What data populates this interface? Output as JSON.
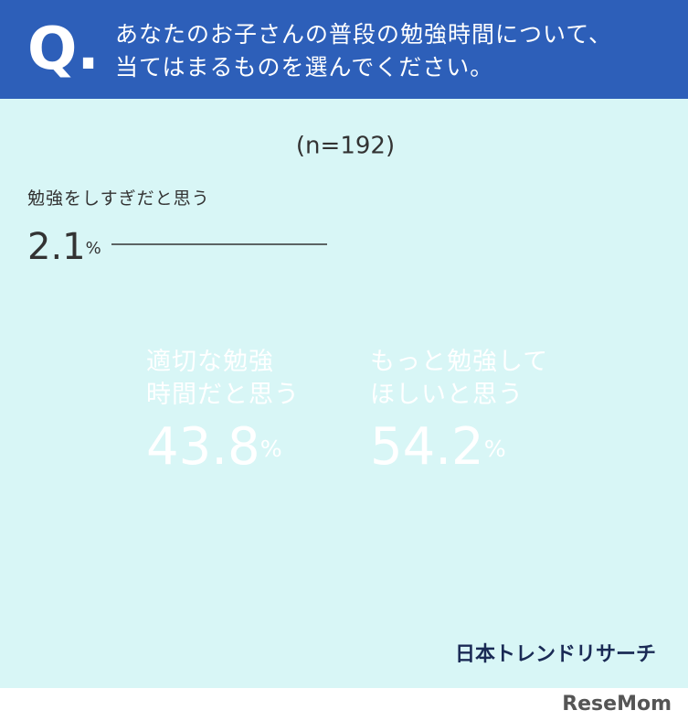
{
  "header": {
    "q": "Q.",
    "question": "あなたのお子さんの普段の勉強時間について、\n当てはまるものを選んでください。"
  },
  "chart_data": {
    "type": "pie",
    "subtitle": "(n=192)",
    "categories": [
      "もっと勉強して\nほしいと思う",
      "適切な勉強\n時間だと思う",
      "勉強をしすぎだと思う"
    ],
    "values": [
      54.2,
      43.8,
      2.1
    ],
    "value_labels": [
      "54.2%",
      "43.8%",
      "2.1%"
    ],
    "colors": [
      "#e05d5f",
      "#5b8de0",
      "#a5a5a5"
    ]
  },
  "source": "日本トレンドリサーチ",
  "watermark": "ReseMom"
}
